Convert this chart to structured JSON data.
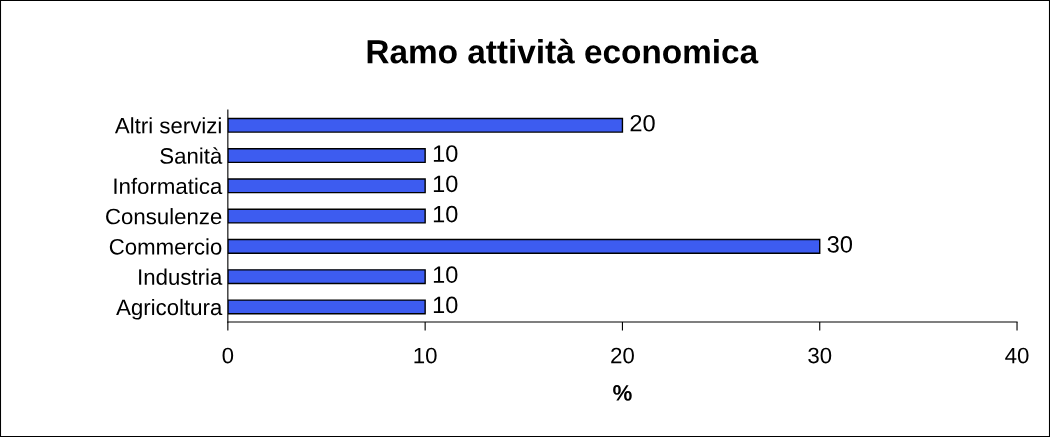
{
  "chart_data": {
    "type": "bar",
    "orientation": "horizontal",
    "title": "Ramo attività economica",
    "xlabel": "%",
    "categories": [
      "Altri servizi",
      "Sanità",
      "Informatica",
      "Consulenze",
      "Commercio",
      "Industria",
      "Agricoltura"
    ],
    "values": [
      20,
      10,
      10,
      10,
      30,
      10,
      10
    ],
    "color": "#3d5cf0",
    "xlim": [
      0,
      40
    ],
    "xticks": [
      0,
      10,
      20,
      30,
      40
    ],
    "data_labels": true,
    "grid": false,
    "legend": false
  }
}
